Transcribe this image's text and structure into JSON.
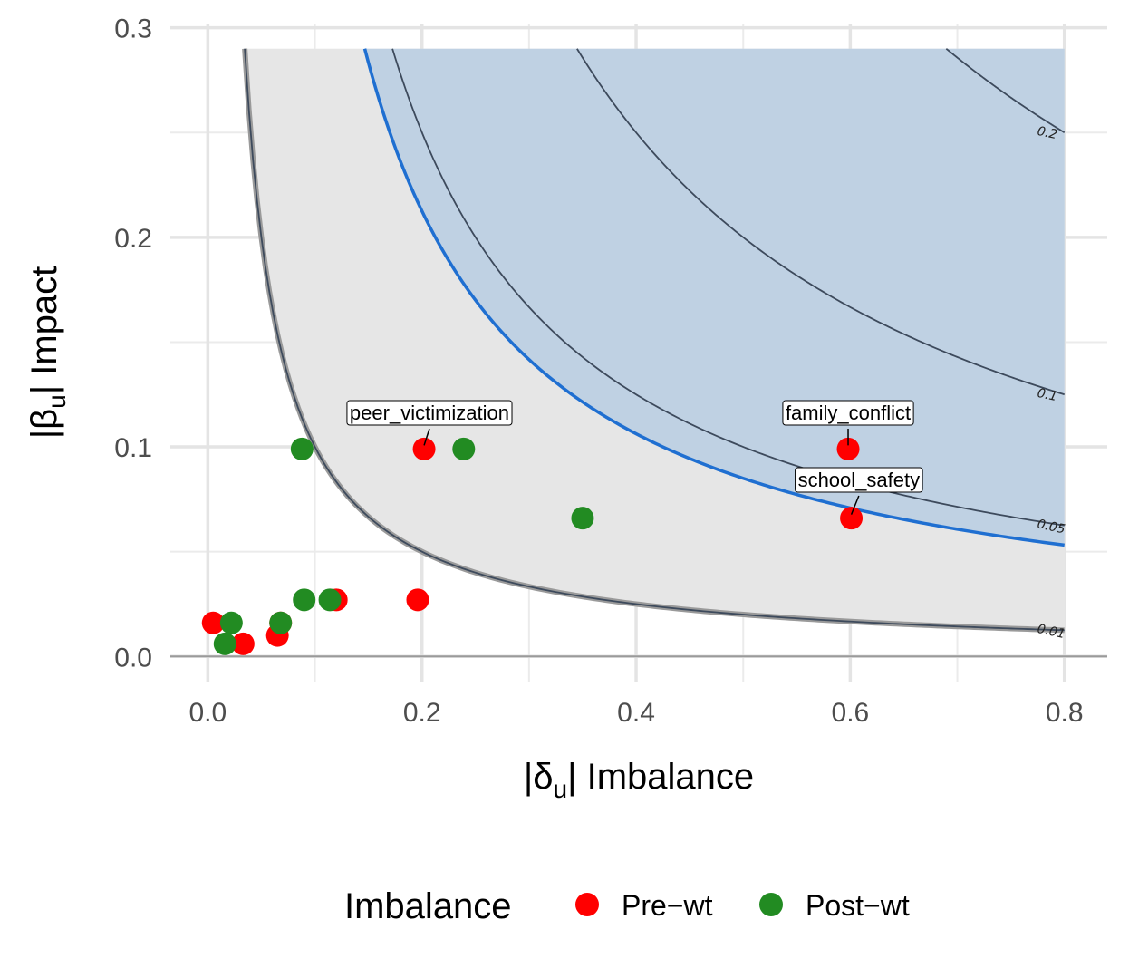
{
  "chart_data": {
    "type": "scatter",
    "xlabel": {
      "pre": "|",
      "greek": "δ",
      "sub": "u",
      "post": "| Imbalance"
    },
    "ylabel": {
      "pre": "|",
      "greek": "β",
      "sub": "u",
      "post": "| Impact"
    },
    "xlim": [
      -0.035,
      0.84
    ],
    "ylim": [
      -0.012,
      0.302
    ],
    "x_ticks": [
      0.0,
      0.2,
      0.4,
      0.6,
      0.8
    ],
    "x_tick_labels": [
      "0.0",
      "0.2",
      "0.4",
      "0.6",
      "0.8"
    ],
    "y_ticks": [
      0.0,
      0.1,
      0.2,
      0.3
    ],
    "y_tick_labels": [
      "0.0",
      "0.1",
      "0.2",
      "0.3"
    ],
    "grid": true,
    "gray_region_threshold": 0.01,
    "blue_region_threshold": 0.0425,
    "region_x_max": 0.8,
    "region_y_max": 0.29,
    "contours": [
      {
        "level": 0.01,
        "label": "0.01"
      },
      {
        "level": 0.05,
        "label": "0.05"
      },
      {
        "level": 0.1,
        "label": "0.1"
      },
      {
        "level": 0.2,
        "label": "0.2"
      }
    ],
    "reference_curve": {
      "level": 0.0425,
      "color": "#1f6fd1"
    },
    "series": [
      {
        "name": "Pre−wt",
        "color": "#ff0000",
        "points": [
          {
            "x": 0.005,
            "y": 0.016
          },
          {
            "x": 0.033,
            "y": 0.006
          },
          {
            "x": 0.065,
            "y": 0.01
          },
          {
            "x": 0.068,
            "y": 0.016
          },
          {
            "x": 0.12,
            "y": 0.027
          },
          {
            "x": 0.196,
            "y": 0.027
          },
          {
            "x": 0.202,
            "y": 0.099
          },
          {
            "x": 0.598,
            "y": 0.099
          },
          {
            "x": 0.601,
            "y": 0.066
          }
        ]
      },
      {
        "name": "Post−wt",
        "color": "#228b22",
        "points": [
          {
            "x": 0.016,
            "y": 0.006
          },
          {
            "x": 0.022,
            "y": 0.016
          },
          {
            "x": 0.068,
            "y": 0.016
          },
          {
            "x": 0.088,
            "y": 0.099
          },
          {
            "x": 0.09,
            "y": 0.027
          },
          {
            "x": 0.114,
            "y": 0.027
          },
          {
            "x": 0.239,
            "y": 0.099
          },
          {
            "x": 0.35,
            "y": 0.066
          }
        ]
      }
    ],
    "annotations": [
      {
        "text": "peer_victimization",
        "x": 0.202,
        "y": 0.099,
        "label_x": 0.207,
        "label_y": 0.113
      },
      {
        "text": "family_conflict",
        "x": 0.598,
        "y": 0.099,
        "label_x": 0.598,
        "label_y": 0.113
      },
      {
        "text": "school_safety",
        "x": 0.601,
        "y": 0.066,
        "label_x": 0.608,
        "label_y": 0.081
      }
    ],
    "legend": {
      "title": "Imbalance",
      "position": "bottom"
    }
  }
}
